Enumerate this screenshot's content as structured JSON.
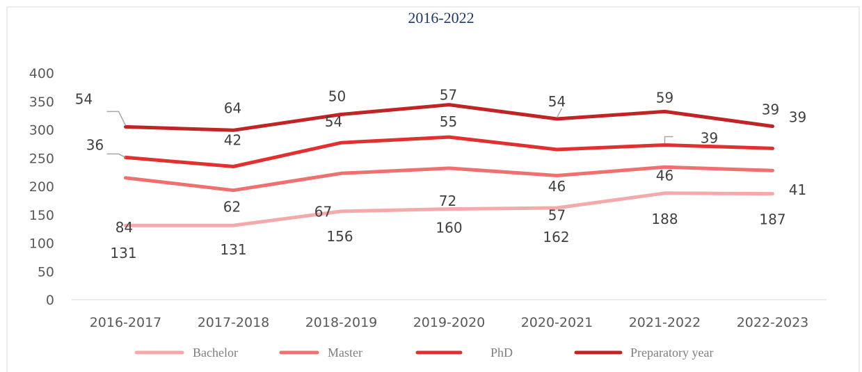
{
  "chart_data": {
    "type": "line",
    "title": "2016-2022",
    "categories": [
      "2016-2017",
      "2017-2018",
      "2018-2019",
      "2019-2020",
      "2020-2021",
      "2021-2022",
      "2022-2023"
    ],
    "ylim": [
      0,
      400
    ],
    "yticks": [
      0,
      50,
      100,
      150,
      200,
      250,
      300,
      350,
      400
    ],
    "stacked": true,
    "grid": false,
    "legend_position": "bottom",
    "series": [
      {
        "name": "Bachelor",
        "color": "#f4aaaa",
        "values": [
          131,
          131,
          156,
          160,
          162,
          188,
          187
        ]
      },
      {
        "name": "Master",
        "color": "#ee7070",
        "values": [
          84,
          62,
          67,
          72,
          57,
          46,
          41
        ]
      },
      {
        "name": "PhD",
        "color": "#e03030",
        "values": [
          36,
          42,
          54,
          55,
          46,
          39,
          39
        ]
      },
      {
        "name": "Preparatory year",
        "color": "#c02424",
        "values": [
          54,
          64,
          50,
          57,
          54,
          59,
          39
        ]
      }
    ]
  }
}
